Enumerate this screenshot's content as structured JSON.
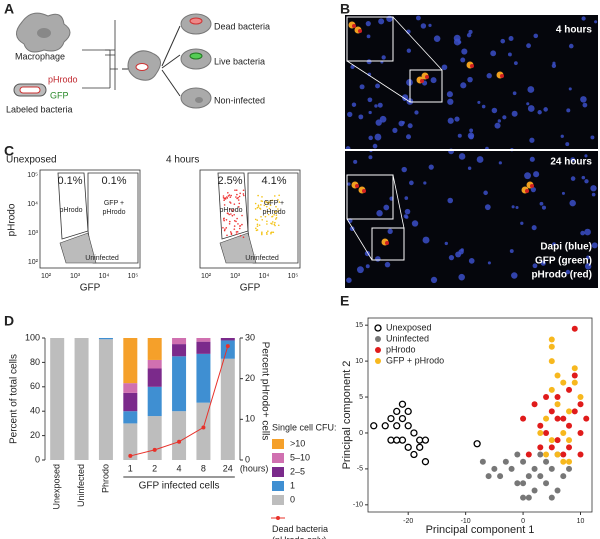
{
  "panel_letters": [
    "A",
    "B",
    "C",
    "D",
    "E"
  ],
  "panel_a": {
    "macrophage": "Macrophage",
    "red_label": "pHrodo",
    "green_label": "GFP",
    "bacteria": "Labeled bacteria",
    "outcomes": [
      "Dead bacteria",
      "Live bacteria",
      "Non-infected"
    ]
  },
  "panel_b": {
    "top_time": "4 hours",
    "bottom_time": "24 hours",
    "stains": [
      "Dapi (blue)",
      "GFP (green)",
      "pHrodo (red)"
    ]
  },
  "panel_c": {
    "titles": [
      "Unexposed",
      "4 hours"
    ],
    "percents": [
      [
        "0.1%",
        "0.1%"
      ],
      [
        "2.5%",
        "4.1%"
      ]
    ],
    "gate_single": "pHrodo",
    "gate_double": [
      "GFP +",
      "pHrodo"
    ],
    "gate_low": "Uninfected",
    "ylabel": "pHrodo",
    "xlabel": "GFP",
    "ticks": [
      "10²",
      "10³",
      "10⁴",
      "10⁵"
    ]
  },
  "chart_data": [
    {
      "type": "bar",
      "stacked": true,
      "categories": [
        "Unexposed",
        "Uninfected",
        "Phrodo",
        "1",
        "2",
        "4",
        "8",
        "24"
      ],
      "xlabel": "GFP infected cells",
      "x_unit": "(hours)",
      "ylabel": "Percent of total cells",
      "y2label": "Percent pHrodo+ cells",
      "legend_title": "Single cell CFU:",
      "ylim": [
        0,
        100
      ],
      "yticks": [
        0,
        20,
        40,
        60,
        80,
        100
      ],
      "y2lim": [
        0,
        30
      ],
      "y2ticks": [
        0,
        10,
        20,
        30
      ],
      "series": [
        {
          "name": "0",
          "color": "#bdbdbd",
          "values": [
            100,
            100,
            99,
            30,
            36,
            40,
            47,
            83
          ]
        },
        {
          "name": "1",
          "color": "#3f8fd2",
          "values": [
            0,
            0,
            1,
            10,
            24,
            45,
            40,
            15
          ]
        },
        {
          "name": "2–5",
          "color": "#7b2a8b",
          "values": [
            0,
            0,
            0,
            15,
            15,
            10,
            10,
            2
          ]
        },
        {
          "name": "5–10",
          "color": "#d070b0",
          "values": [
            0,
            0,
            0,
            8,
            7,
            5,
            3,
            0
          ]
        },
        {
          "name": ">10",
          "color": "#f5a02a",
          "values": [
            0,
            0,
            0,
            37,
            18,
            0,
            0,
            0
          ]
        },
        {
          "name": "Dead bacteria (pHrodo only)",
          "color": "#e8312a",
          "axis": "y2",
          "type": "line",
          "values": [
            null,
            null,
            null,
            1,
            2.5,
            4.5,
            8,
            28
          ]
        }
      ]
    },
    {
      "type": "scatter",
      "xlabel": "Principal component 1",
      "ylabel": "Principal component 2",
      "xlim": [
        -27,
        12
      ],
      "ylim": [
        -11,
        16
      ],
      "xticks": [
        -20,
        -10,
        0,
        10
      ],
      "yticks": [
        -10,
        -5,
        0,
        5,
        10,
        15
      ],
      "series": [
        {
          "name": "Unexposed",
          "color": "#000000",
          "filled": false,
          "x": [
            -26,
            -24,
            -23,
            -22,
            -21,
            -20,
            -21,
            -22,
            -20,
            -19,
            -21,
            -20,
            -18,
            -17,
            -18,
            -17,
            -19,
            -22,
            -8,
            -23
          ],
          "values": [
            1,
            1,
            -1,
            3,
            4,
            3,
            2,
            1,
            1,
            0,
            -1,
            -2,
            -1,
            -1,
            -2,
            -4,
            -3,
            -1,
            -1.5,
            2
          ]
        },
        {
          "name": "Uninfected",
          "color": "#777777",
          "filled": true,
          "x": [
            -7,
            -6,
            -5,
            -4,
            -3,
            -2,
            -1,
            0,
            0,
            1,
            2,
            2,
            3,
            4,
            5,
            5,
            6,
            7,
            1,
            3,
            -1,
            4,
            6,
            8,
            0
          ],
          "values": [
            -4,
            -6,
            -5,
            -6,
            -4,
            -5,
            -3,
            -4,
            -7,
            -6,
            -5,
            -8,
            -6,
            -7,
            -5,
            -9,
            -8,
            -6,
            -9,
            -3,
            -7,
            -4,
            -3,
            -5,
            -9
          ]
        },
        {
          "name": "pHrodo",
          "color": "#e01b1b",
          "filled": true,
          "x": [
            0,
            1,
            2,
            3,
            4,
            5,
            6,
            6,
            7,
            8,
            8,
            9,
            9,
            10,
            10,
            9,
            7,
            5,
            3,
            10,
            8,
            6,
            4,
            11
          ],
          "values": [
            2,
            -3,
            4,
            1,
            0,
            3,
            -1,
            5,
            2,
            6,
            -2,
            3,
            8,
            0,
            4,
            14.5,
            -3,
            -2,
            -2,
            -3,
            1,
            2,
            5,
            2
          ]
        },
        {
          "name": "GFP + pHrodo",
          "color": "#f7b81e",
          "filled": true,
          "x": [
            5,
            5,
            5,
            6,
            7,
            6,
            7,
            8,
            4,
            5,
            6,
            7,
            8,
            9,
            9,
            10,
            3,
            4,
            8,
            5
          ],
          "values": [
            13,
            12,
            10,
            8,
            7,
            4,
            0,
            -1,
            2,
            -1,
            -3,
            -4,
            3,
            9,
            7,
            5,
            0,
            -3,
            -4,
            6
          ]
        }
      ]
    }
  ]
}
